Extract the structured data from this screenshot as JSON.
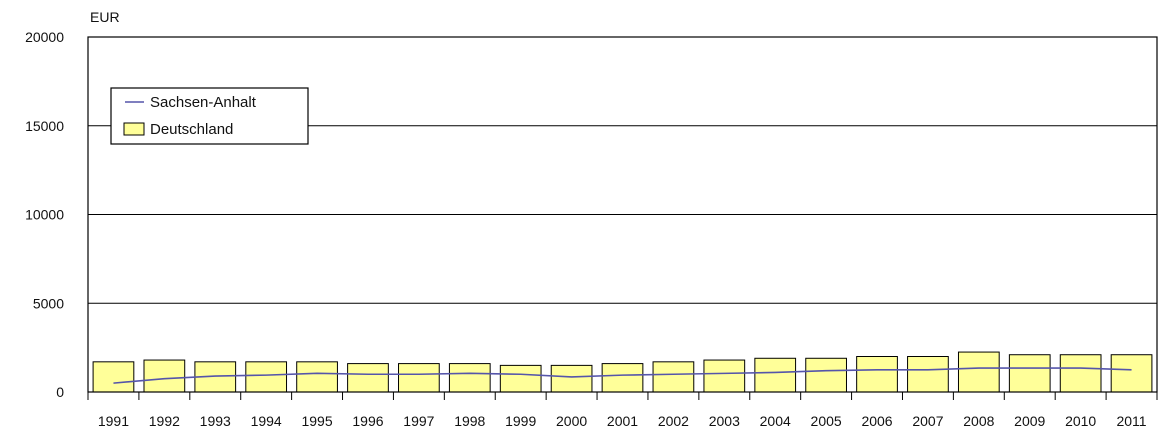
{
  "chart_data": {
    "type": "bar",
    "title": "",
    "unit": "EUR",
    "xlabel": "",
    "ylabel": "",
    "ylim": [
      0,
      20000
    ],
    "yticks": [
      0,
      5000,
      10000,
      15000,
      20000
    ],
    "grid": true,
    "legend_position": "top-left",
    "categories": [
      "1991",
      "1992",
      "1993",
      "1994",
      "1995",
      "1996",
      "1997",
      "1998",
      "1999",
      "2000",
      "2001",
      "2002",
      "2003",
      "2004",
      "2005",
      "2006",
      "2007",
      "2008",
      "2009",
      "2010",
      "2011"
    ],
    "series": [
      {
        "name": "Deutschland",
        "kind": "bar",
        "color": "#ffff99",
        "values": [
          1700,
          1800,
          1700,
          1700,
          1700,
          1600,
          1600,
          1600,
          1500,
          1500,
          1600,
          1700,
          1800,
          1900,
          1900,
          2000,
          2000,
          2250,
          2100,
          2100,
          2100
        ]
      },
      {
        "name": "Sachsen-Anhalt",
        "kind": "line",
        "color": "#5555aa",
        "values": [
          500,
          750,
          900,
          950,
          1050,
          1000,
          1000,
          1050,
          1000,
          850,
          950,
          1000,
          1050,
          1100,
          1200,
          1250,
          1250,
          1350,
          1350,
          1350,
          1250
        ]
      }
    ]
  }
}
